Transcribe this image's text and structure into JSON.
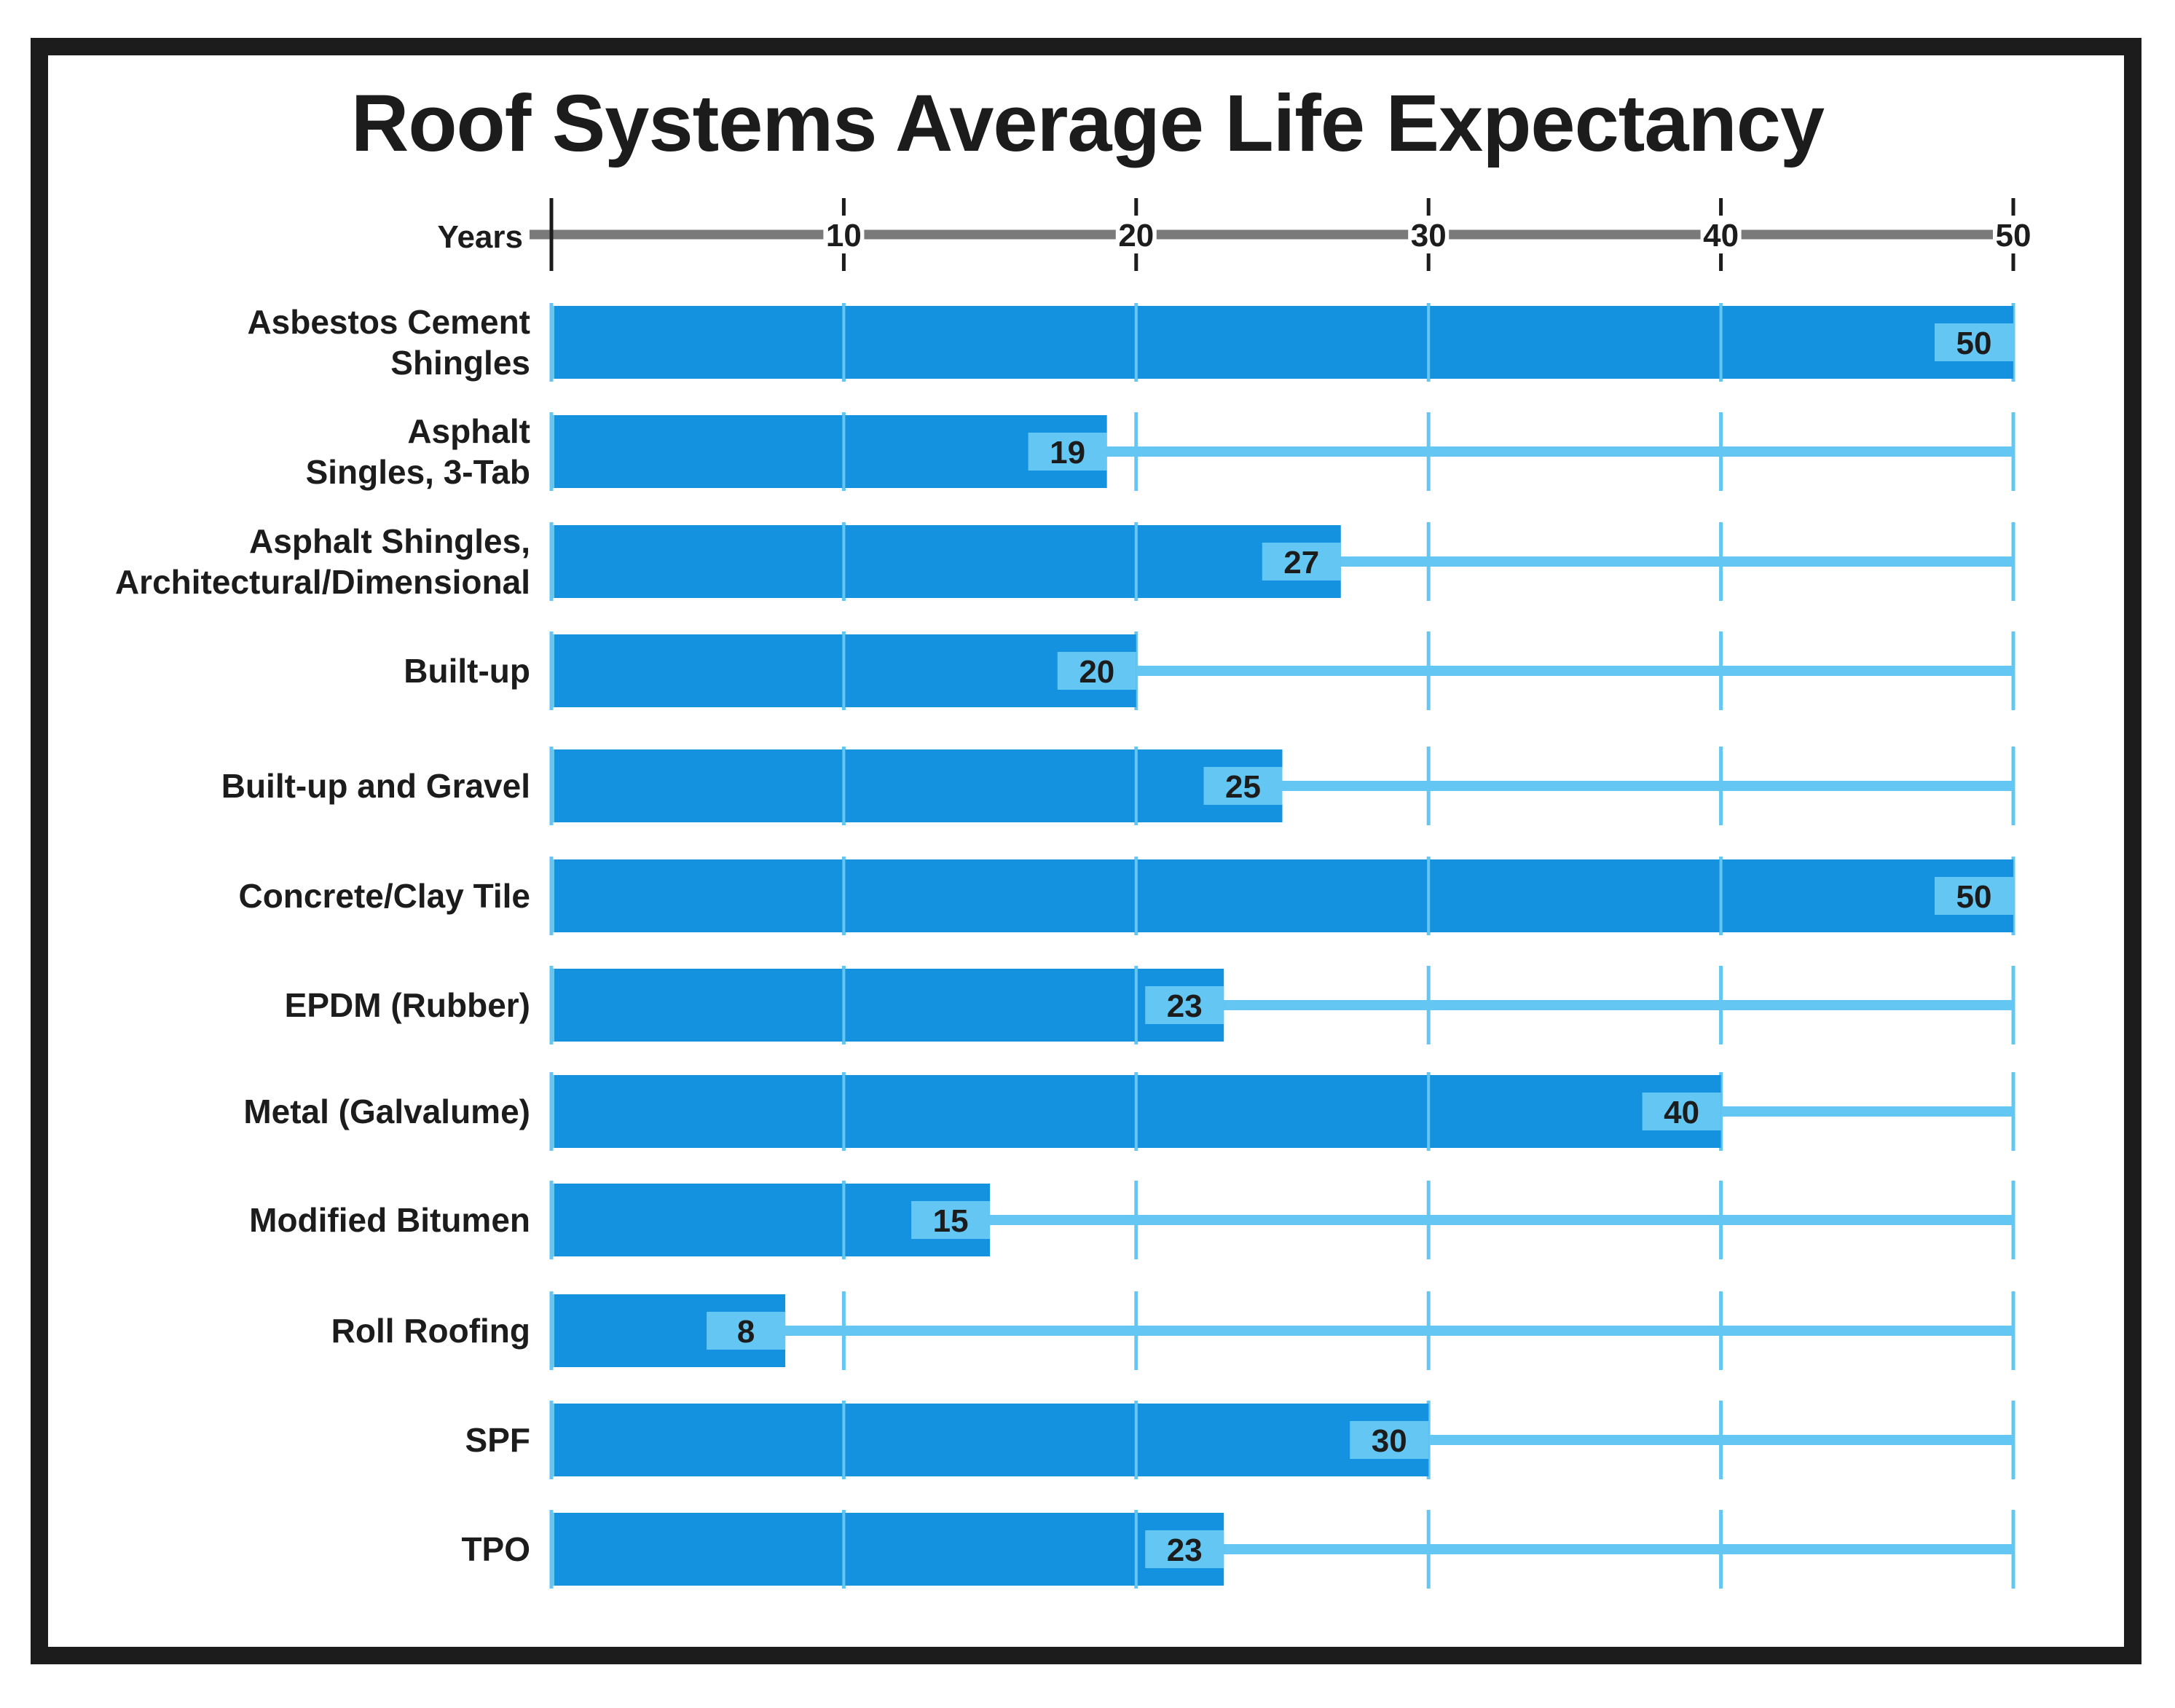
{
  "chart_data": {
    "type": "bar",
    "orientation": "horizontal",
    "title": "Roof Systems Average Life Expectancy",
    "xlabel": "Years",
    "ylabel": "",
    "xlim": [
      0,
      50
    ],
    "xticks": [
      10,
      20,
      30,
      40,
      50
    ],
    "grid": true,
    "categories": [
      [
        "Asbestos Cement",
        "Shingles"
      ],
      [
        "Asphalt",
        "Singles, 3-Tab"
      ],
      [
        "Asphalt Shingles,",
        "Architectural/Dimensional"
      ],
      [
        "Built-up"
      ],
      [
        "Built-up and Gravel"
      ],
      [
        "Concrete/Clay Tile"
      ],
      [
        "EPDM (Rubber)"
      ],
      [
        "Metal (Galvalume)"
      ],
      [
        "Modified Bitumen"
      ],
      [
        "Roll Roofing"
      ],
      [
        "SPF"
      ],
      [
        "TPO"
      ]
    ],
    "values": [
      50,
      19,
      27,
      20,
      25,
      50,
      23,
      40,
      15,
      8,
      30,
      23
    ],
    "colors": {
      "bar": "#1592df",
      "track": "#64c6f2",
      "value_box": "#64c6f2",
      "axis": "#7a7a7a",
      "text": "#1c1c1c",
      "frame": "#1c1c1c"
    }
  }
}
